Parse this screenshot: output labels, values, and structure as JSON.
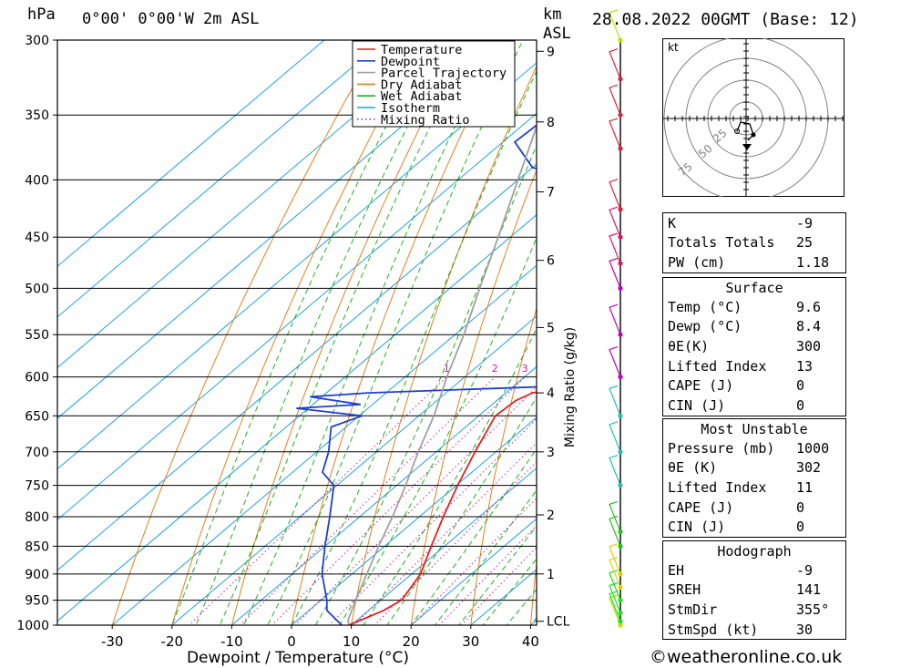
{
  "header": {
    "location": "0°00' 0°00'W 2m ASL",
    "hpa_label": "hPa",
    "km_label": "km",
    "asl_label": "ASL",
    "datetime": "28.08.2022 00GMT (Base: 12)"
  },
  "legend": {
    "items": [
      {
        "label": "Temperature",
        "color": "#e02020",
        "style": "solid"
      },
      {
        "label": "Dewpoint",
        "color": "#1f3fd0",
        "style": "solid"
      },
      {
        "label": "Parcel Trajectory",
        "color": "#a0a0a0",
        "style": "solid"
      },
      {
        "label": "Dry Adiabat",
        "color": "#e08020",
        "style": "solid"
      },
      {
        "label": "Wet Adiabat",
        "color": "#20b020",
        "style": "solid"
      },
      {
        "label": "Isotherm",
        "color": "#20a0e0",
        "style": "solid"
      },
      {
        "label": "Mixing Ratio",
        "color": "#c020a0",
        "style": "dotted"
      }
    ]
  },
  "chart_data": {
    "type": "line",
    "xlabel": "Dewpoint / Temperature (°C)",
    "x_ticks": [
      -30,
      -20,
      -10,
      0,
      10,
      20,
      30,
      40
    ],
    "xlim": [
      -40,
      40
    ],
    "y_scale": "log",
    "ylim": [
      1000,
      300
    ],
    "pressure_levels": [
      300,
      350,
      400,
      450,
      500,
      550,
      600,
      650,
      700,
      750,
      800,
      850,
      900,
      950,
      1000
    ],
    "km_label": "km",
    "km_ticks": [
      {
        "label": "LCL",
        "p": 992
      },
      {
        "label": "1",
        "p": 900
      },
      {
        "label": "2",
        "p": 797
      },
      {
        "label": "3",
        "p": 700
      },
      {
        "label": "4",
        "p": 620
      },
      {
        "label": "5",
        "p": 542
      },
      {
        "label": "6",
        "p": 472
      },
      {
        "label": "7",
        "p": 410
      },
      {
        "label": "8",
        "p": 355
      },
      {
        "label": "9",
        "p": 307
      }
    ],
    "mixing_ratio_label": "Mixing Ratio (g/kg)",
    "mixing_ratio_values": [
      1,
      2,
      3,
      4,
      6,
      8,
      10,
      15,
      20,
      25
    ],
    "series": [
      {
        "name": "Temperature",
        "color": "#e02020",
        "points": [
          [
            1000,
            9.6
          ],
          [
            970,
            12.5
          ],
          [
            950,
            13.5
          ],
          [
            900,
            11.5
          ],
          [
            850,
            7.8
          ],
          [
            800,
            4.0
          ],
          [
            750,
            0.2
          ],
          [
            700,
            -3.5
          ],
          [
            650,
            -7.2
          ],
          [
            630,
            -6.8
          ],
          [
            620,
            -5.5
          ],
          [
            612,
            -1.5
          ],
          [
            600,
            -2.5
          ],
          [
            550,
            -7.5
          ],
          [
            500,
            -13.0
          ],
          [
            475,
            -15.8
          ],
          [
            450,
            -20.5
          ],
          [
            400,
            -28.5
          ],
          [
            385,
            -29.2
          ],
          [
            350,
            -35.5
          ],
          [
            300,
            -44.5
          ]
        ]
      },
      {
        "name": "Dewpoint",
        "color": "#1f3fd0",
        "points": [
          [
            1000,
            8.4
          ],
          [
            970,
            3.0
          ],
          [
            950,
            1.0
          ],
          [
            900,
            -5.0
          ],
          [
            850,
            -10.0
          ],
          [
            800,
            -15.0
          ],
          [
            750,
            -20.5
          ],
          [
            730,
            -25.0
          ],
          [
            700,
            -28.0
          ],
          [
            665,
            -32.5
          ],
          [
            650,
            -29.5
          ],
          [
            640,
            -42.0
          ],
          [
            635,
            -32.0
          ],
          [
            625,
            -42.0
          ],
          [
            620,
            -33.0
          ],
          [
            612,
            -4.5
          ],
          [
            600,
            -5.5
          ],
          [
            550,
            -11.0
          ],
          [
            500,
            -17.5
          ],
          [
            450,
            -28.5
          ],
          [
            425,
            -29.5
          ],
          [
            400,
            -38.0
          ],
          [
            390,
            -50.0
          ],
          [
            370,
            -58.0
          ],
          [
            350,
            -57.5
          ],
          [
            330,
            -57.0
          ],
          [
            300,
            -65.0
          ]
        ]
      },
      {
        "name": "Parcel Trajectory",
        "color": "#a0a0a0",
        "points": [
          [
            1000,
            9.6
          ],
          [
            990,
            8.5
          ],
          [
            950,
            5.8
          ],
          [
            900,
            2.5
          ],
          [
            850,
            -1.0
          ],
          [
            800,
            -4.5
          ],
          [
            750,
            -8.5
          ],
          [
            700,
            -13.0
          ],
          [
            650,
            -17.5
          ],
          [
            600,
            -23.0
          ],
          [
            550,
            -28.5
          ],
          [
            500,
            -35.0
          ],
          [
            450,
            -42.0
          ],
          [
            400,
            -50.0
          ],
          [
            350,
            -59.0
          ],
          [
            300,
            -69.0
          ]
        ]
      }
    ],
    "wind_barbs": [
      {
        "p": 1000,
        "color": "#c0e000"
      },
      {
        "p": 992,
        "color": "#20e020"
      },
      {
        "p": 975,
        "color": "#20e020"
      },
      {
        "p": 950,
        "color": "#20e020"
      },
      {
        "p": 925,
        "color": "#e0d000"
      },
      {
        "p": 900,
        "color": "#e0d000"
      },
      {
        "p": 850,
        "color": "#20c020"
      },
      {
        "p": 825,
        "color": "#20c020"
      },
      {
        "p": 750,
        "color": "#20c0b0"
      },
      {
        "p": 700,
        "color": "#20c0b0"
      },
      {
        "p": 650,
        "color": "#20c0b0"
      },
      {
        "p": 600,
        "color": "#c000c0"
      },
      {
        "p": 550,
        "color": "#c000c0"
      },
      {
        "p": 500,
        "color": "#c000c0"
      },
      {
        "p": 475,
        "color": "#e01060"
      },
      {
        "p": 450,
        "color": "#e01060"
      },
      {
        "p": 425,
        "color": "#e02040"
      },
      {
        "p": 375,
        "color": "#e02040"
      },
      {
        "p": 350,
        "color": "#e02040"
      },
      {
        "p": 325,
        "color": "#e02040"
      },
      {
        "p": 300,
        "color": "#c0e000"
      }
    ]
  },
  "hodograph": {
    "unit_label": "kt",
    "ring_labels": [
      "25",
      "50",
      "75"
    ]
  },
  "indices": {
    "rows": [
      {
        "key": "K",
        "value": "-9"
      },
      {
        "key": "Totals Totals",
        "value": "25"
      },
      {
        "key": "PW (cm)",
        "value": "1.18"
      }
    ]
  },
  "surface": {
    "title": "Surface",
    "rows": [
      {
        "key": "Temp (°C)",
        "value": "9.6"
      },
      {
        "key": "Dewp (°C)",
        "value": "8.4"
      },
      {
        "key": "θE(K)",
        "value": "300"
      },
      {
        "key": "Lifted Index",
        "value": "13"
      },
      {
        "key": "CAPE (J)",
        "value": "0"
      },
      {
        "key": "CIN (J)",
        "value": "0"
      }
    ]
  },
  "most_unstable": {
    "title": "Most Unstable",
    "rows": [
      {
        "key": "Pressure (mb)",
        "value": "1000"
      },
      {
        "key": "θE (K)",
        "value": "302"
      },
      {
        "key": "Lifted Index",
        "value": "11"
      },
      {
        "key": "CAPE (J)",
        "value": "0"
      },
      {
        "key": "CIN (J)",
        "value": "0"
      }
    ]
  },
  "hodograph_table": {
    "title": "Hodograph",
    "rows": [
      {
        "key": "EH",
        "value": "-9"
      },
      {
        "key": "SREH",
        "value": "141"
      },
      {
        "key": "StmDir",
        "value": "355°"
      },
      {
        "key": "StmSpd (kt)",
        "value": "30"
      }
    ]
  },
  "footer": {
    "credit": "©weatheronline.co.uk"
  }
}
